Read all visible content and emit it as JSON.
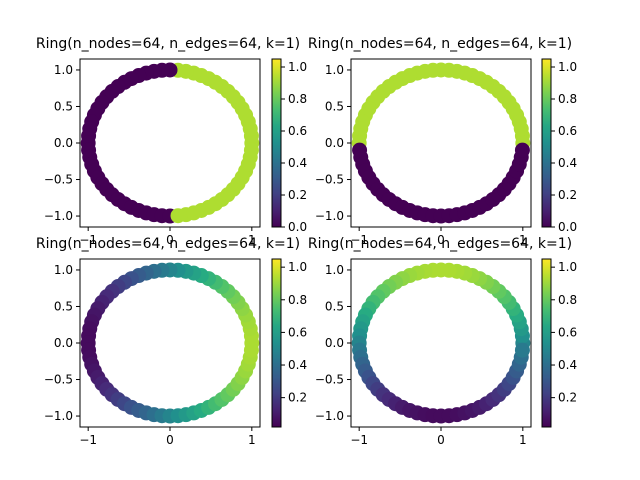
{
  "chart_data": [
    {
      "type": "scatter",
      "title": "Ring(n_nodes=64, n_edges=64, k=1)",
      "n_points": 64,
      "xticks": [
        "−1",
        "0",
        "1"
      ],
      "yticks": [
        "1.0",
        "0.5",
        "0.0",
        "−0.5",
        "−1.0"
      ],
      "xlim": [
        -1.1,
        1.1
      ],
      "ylim": [
        -1.15,
        1.15
      ],
      "colorbar": {
        "ticks": [
          "0.0",
          "0.2",
          "0.4",
          "0.6",
          "0.8",
          "1.0"
        ],
        "range": [
          0,
          1.05
        ]
      },
      "values_by_angle": {
        "pattern": "half_x",
        "low": 0.0,
        "high": 0.93
      }
    },
    {
      "type": "scatter",
      "title": "Ring(n_nodes=64, n_edges=64, k=1)",
      "n_points": 64,
      "xticks": [
        "−1",
        "0",
        "1"
      ],
      "yticks": [
        "1.0",
        "0.5",
        "0.0",
        "−0.5",
        "−1.0"
      ],
      "xlim": [
        -1.1,
        1.1
      ],
      "ylim": [
        -1.15,
        1.15
      ],
      "colorbar": {
        "ticks": [
          "0.0",
          "0.2",
          "0.4",
          "0.6",
          "0.8",
          "1.0"
        ],
        "range": [
          0,
          1.05
        ]
      },
      "values_by_angle": {
        "pattern": "half_y",
        "low": 0.0,
        "high": 0.93
      }
    },
    {
      "type": "scatter",
      "title": "Ring(n_nodes=64, n_edges=64, k=1)",
      "n_points": 64,
      "xticks": [
        "−1",
        "0",
        "1"
      ],
      "yticks": [
        "1.0",
        "0.5",
        "0.0",
        "−0.5",
        "−1.0"
      ],
      "xlim": [
        -1.1,
        1.1
      ],
      "ylim": [
        -1.15,
        1.15
      ],
      "colorbar": {
        "ticks": [
          "0.2",
          "0.4",
          "0.6",
          "0.8",
          "1.0"
        ],
        "range": [
          0.02,
          1.05
        ]
      },
      "values_by_angle": {
        "pattern": "smooth_x",
        "low": 0.05,
        "high": 0.93
      }
    },
    {
      "type": "scatter",
      "title": "Ring(n_nodes=64, n_edges=64, k=1)",
      "n_points": 64,
      "xticks": [
        "−1",
        "0",
        "1"
      ],
      "yticks": [
        "1.0",
        "0.5",
        "0.0",
        "−0.5",
        "−1.0"
      ],
      "xlim": [
        -1.1,
        1.1
      ],
      "ylim": [
        -1.15,
        1.15
      ],
      "colorbar": {
        "ticks": [
          "0.2",
          "0.4",
          "0.6",
          "0.8",
          "1.0"
        ],
        "range": [
          0.02,
          1.05
        ]
      },
      "values_by_angle": {
        "pattern": "smooth_y",
        "low": 0.05,
        "high": 0.93
      }
    }
  ]
}
